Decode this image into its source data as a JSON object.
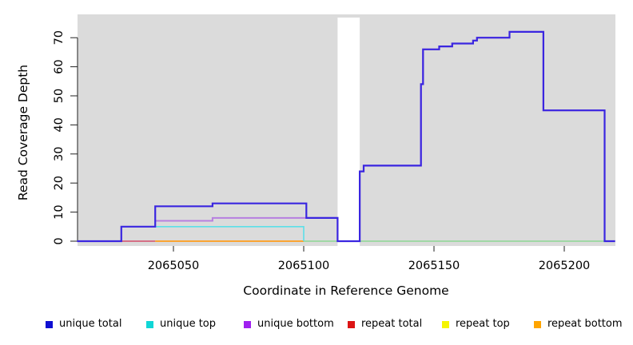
{
  "axes": {
    "x_label": "Coordinate in Reference Genome",
    "y_label": "Read Coverage Depth"
  },
  "chart_data": {
    "type": "line",
    "subtype": "step-coverage",
    "title": "",
    "xlabel": "Coordinate in Reference Genome",
    "ylabel": "Read Coverage Depth",
    "xlim": [
      2065013,
      2065220
    ],
    "ylim": [
      0,
      77
    ],
    "x_ticks": [
      2065050,
      2065100,
      2065150,
      2065200
    ],
    "y_ticks": [
      0,
      10,
      20,
      30,
      40,
      50,
      60,
      70
    ],
    "grid": false,
    "plot_bg": "#dbdbdb",
    "page_bg": "#ffffff",
    "gap": {
      "from": 2065113,
      "to": 2065121.5,
      "note": "white no-data column"
    },
    "legend_position": "bottom",
    "series": [
      {
        "name": "unique total",
        "legend_color": "#0f0fd2",
        "line_color": "#3a26e0",
        "width": 2.2,
        "draw_order": 5,
        "steps": [
          [
            2065013,
            0
          ],
          [
            2065030,
            5
          ],
          [
            2065043,
            12
          ],
          [
            2065065,
            13
          ],
          [
            2065101,
            8
          ],
          [
            2065113,
            0
          ],
          [
            2065121.5,
            24
          ],
          [
            2065123,
            26
          ],
          [
            2065145,
            54
          ],
          [
            2065145.8,
            66
          ],
          [
            2065152,
            67
          ],
          [
            2065157,
            68
          ],
          [
            2065165,
            69
          ],
          [
            2065166.5,
            70
          ],
          [
            2065179,
            72
          ],
          [
            2065192,
            45
          ],
          [
            2065215.5,
            0
          ]
        ],
        "end": 2065219.5
      },
      {
        "name": "unique top",
        "legend_color": "#10d6d6",
        "line_color": "#5cdfe8",
        "width": 1.6,
        "draw_order": 3,
        "steps": [
          [
            2065030,
            5
          ],
          [
            2065100,
            0
          ]
        ],
        "end": 2065100
      },
      {
        "name": "unique bottom",
        "legend_color": "#a020f0",
        "line_color": "#b77fe0",
        "width": 2.0,
        "draw_order": 4,
        "steps": [
          [
            2065043,
            7
          ],
          [
            2065065,
            8
          ],
          [
            2065113,
            0
          ],
          [
            2065121.5,
            24
          ],
          [
            2065123,
            26
          ],
          [
            2065145,
            54
          ],
          [
            2065145.8,
            66
          ],
          [
            2065152,
            67
          ],
          [
            2065157,
            68
          ],
          [
            2065165,
            69
          ],
          [
            2065166.5,
            70
          ],
          [
            2065179,
            72
          ],
          [
            2065192,
            45
          ],
          [
            2065215.5,
            0
          ]
        ],
        "end": 2065219.5
      },
      {
        "name": "repeat total",
        "legend_color": "#dc1414",
        "line_color": "#d4607a",
        "width": 1.7,
        "draw_order": 1,
        "steps": [
          [
            2065030,
            0
          ]
        ],
        "end": 2065043
      },
      {
        "name": "repeat top",
        "legend_color": "#f5f500",
        "line_color": "#8cd793",
        "width": 1.6,
        "draw_order": 0,
        "steps": [
          [
            2065100,
            0
          ]
        ],
        "end": 2065219.5
      },
      {
        "name": "repeat bottom",
        "legend_color": "#ffa500",
        "line_color": "#ff9c1b",
        "width": 1.8,
        "draw_order": 2,
        "steps": [
          [
            2065043,
            0
          ]
        ],
        "end": 2065100
      }
    ]
  }
}
